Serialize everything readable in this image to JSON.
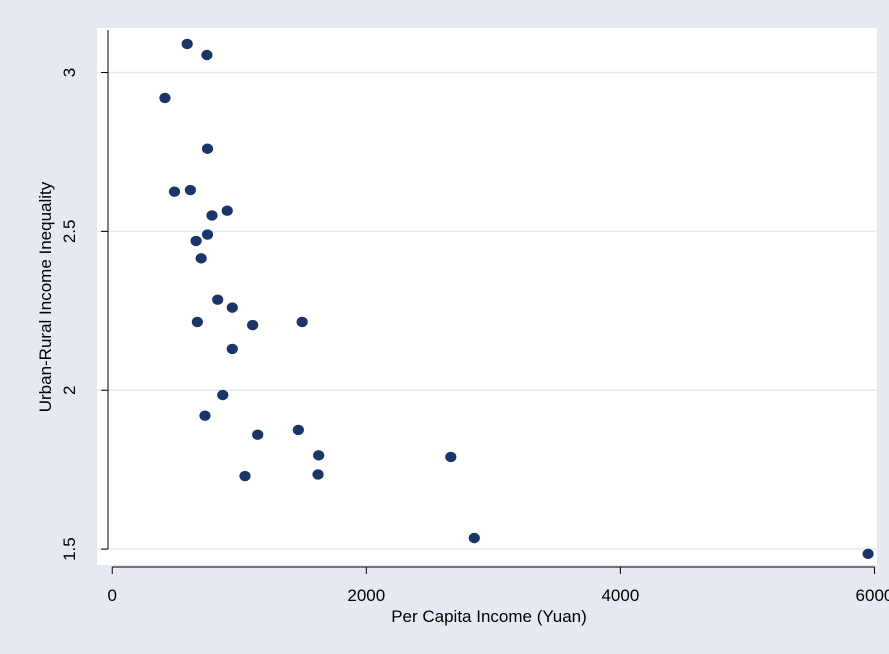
{
  "colors": {
    "outer_background": "#e5e9f2",
    "plot_background": "#ffffff",
    "gridline": "#e5e9f2",
    "marker": "#1a3668",
    "axis": "#000000"
  },
  "chart_data": {
    "type": "scatter",
    "title": "",
    "xlabel": "Per Capita Income (Yuan)",
    "ylabel": "Urban-Rural Income Inequality",
    "xlim": [
      -120,
      6020
    ],
    "ylim": [
      1.45,
      3.14
    ],
    "xticks": [
      0,
      2000,
      4000,
      6000
    ],
    "xtick_labels": [
      "0",
      "2000",
      "4000",
      "6000"
    ],
    "yticks": [
      1.5,
      2,
      2.5,
      3
    ],
    "ytick_labels": [
      "1.5",
      "2",
      "2.5",
      "3"
    ],
    "grid": "horizontal",
    "legend": "none",
    "points": [
      {
        "x": 590,
        "y": 3.09
      },
      {
        "x": 745,
        "y": 3.055
      },
      {
        "x": 415,
        "y": 2.92
      },
      {
        "x": 750,
        "y": 2.76
      },
      {
        "x": 490,
        "y": 2.625
      },
      {
        "x": 615,
        "y": 2.63
      },
      {
        "x": 905,
        "y": 2.565
      },
      {
        "x": 785,
        "y": 2.55
      },
      {
        "x": 750,
        "y": 2.49
      },
      {
        "x": 660,
        "y": 2.47
      },
      {
        "x": 700,
        "y": 2.415
      },
      {
        "x": 830,
        "y": 2.285
      },
      {
        "x": 945,
        "y": 2.26
      },
      {
        "x": 1495,
        "y": 2.215
      },
      {
        "x": 670,
        "y": 2.215
      },
      {
        "x": 1105,
        "y": 2.205
      },
      {
        "x": 945,
        "y": 2.13
      },
      {
        "x": 870,
        "y": 1.985
      },
      {
        "x": 730,
        "y": 1.92
      },
      {
        "x": 1145,
        "y": 1.86
      },
      {
        "x": 1465,
        "y": 1.875
      },
      {
        "x": 1625,
        "y": 1.795
      },
      {
        "x": 2665,
        "y": 1.79
      },
      {
        "x": 1620,
        "y": 1.735
      },
      {
        "x": 1045,
        "y": 1.73
      },
      {
        "x": 2850,
        "y": 1.535
      },
      {
        "x": 5950,
        "y": 1.485
      }
    ]
  }
}
